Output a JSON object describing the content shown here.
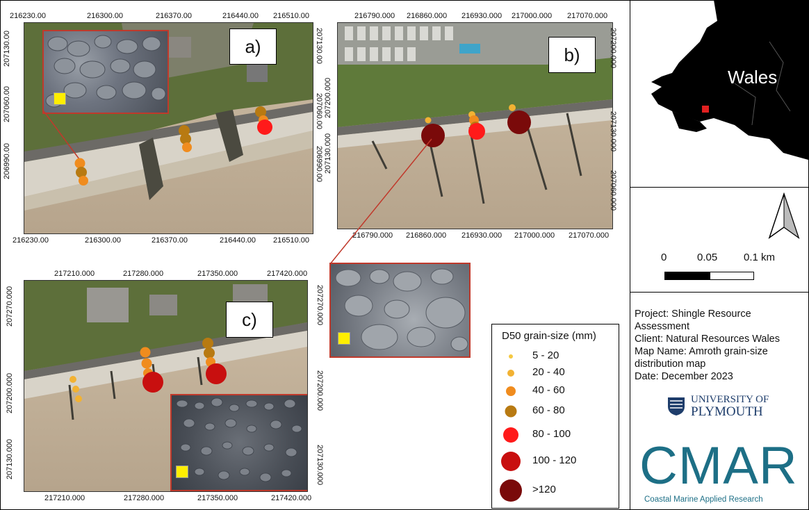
{
  "panel_a": {
    "label": "a)",
    "top_ticks": [
      "216230.00",
      "216300.00",
      "216370.00",
      "216440.00",
      "216510.00"
    ],
    "bottom_ticks": [
      "216230.00",
      "216300.00",
      "216370.00",
      "216440.00",
      "216510.00"
    ],
    "left_ticks": [
      "207130.00",
      "207060.00",
      "206990.00"
    ],
    "right_ticks": [
      "207130.00",
      "207060.00",
      "206990.00"
    ]
  },
  "panel_b": {
    "label": "b)",
    "top_ticks": [
      "216790.000",
      "216860.000",
      "216930.000",
      "217000.000",
      "217070.000"
    ],
    "bottom_ticks": [
      "216790.000",
      "216860.000",
      "216930.000",
      "217000.000",
      "217070.000"
    ],
    "left_ticks": [
      "207200.000",
      "207130.000",
      "207060.000"
    ],
    "right_ticks": [
      "207200.000",
      "207130.000",
      "207060.000"
    ]
  },
  "panel_c": {
    "label": "c)",
    "top_ticks": [
      "217210.000",
      "217280.000",
      "217350.000",
      "217420.000"
    ],
    "bottom_ticks": [
      "217210.000",
      "217280.000",
      "217350.000",
      "217420.000"
    ],
    "left_ticks": [
      "207270.000",
      "207200.000",
      "207130.000"
    ],
    "right_ticks": [
      "207270.000",
      "207200.000",
      "207130.000"
    ]
  },
  "overview": {
    "label": "Wales"
  },
  "scalebar": {
    "labels": [
      "0",
      "0.05",
      "0.1 km"
    ]
  },
  "legend": {
    "title": "D50 grain-size (mm)",
    "items": [
      {
        "label": "5 - 20",
        "color": "#f5c842"
      },
      {
        "label": "20 - 40",
        "color": "#f2b233"
      },
      {
        "label": "40 - 60",
        "color": "#f08c1e"
      },
      {
        "label": "60 - 80",
        "color": "#b87a12"
      },
      {
        "label": "80 - 100",
        "color": "#ff1a1a"
      },
      {
        "label": "100 - 120",
        "color": "#c80f0f"
      },
      {
        "label": ">120",
        "color": "#7a0a0a"
      }
    ]
  },
  "metadata": {
    "project": "Project: Shingle Resource",
    "project2": "Assessment",
    "client": "Client: Natural Resources Wales",
    "map_name": "Map Name: Amroth grain-size",
    "map_name2": "distribution map",
    "date": "Date: December 2023"
  },
  "logos": {
    "university_line1": "UNIVERSITY OF",
    "university_line2": "PLYMOUTH",
    "cmar": "CMAR",
    "cmar_sub": "Coastal Marine Applied Research"
  },
  "colors": {
    "accent_red": "#c0392b",
    "cmar_blue": "#1d6f86",
    "highlight": "#ffee00"
  }
}
